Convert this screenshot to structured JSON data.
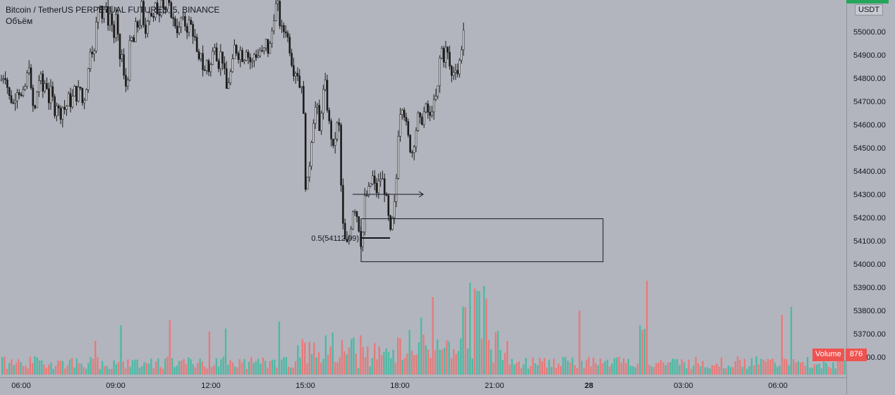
{
  "legend": {
    "symbol": "Bitcoin / TetherUS PERPETUAL FUTURES, 5, BINANCE",
    "volume_label": "Объём"
  },
  "price_scale": {
    "unit": "USDT",
    "ticks": [
      "55000.00",
      "54900.00",
      "54800.00",
      "54700.00",
      "54600.00",
      "54500.00",
      "54400.00",
      "54300.00",
      "54200.00",
      "54100.00",
      "54000.00",
      "53900.00",
      "53800.00",
      "53700.00",
      "53600.00"
    ]
  },
  "time_axis": {
    "ticks": [
      "06:00",
      "09:00",
      "12:00",
      "15:00",
      "18:00",
      "21:00",
      "28",
      "03:00",
      "06:00"
    ]
  },
  "volume_tag": {
    "label": "Volume",
    "value": "876"
  },
  "annotation": {
    "fib_label": "0.5(54112.09)"
  },
  "colors": {
    "background": "#b2b5be",
    "candle": "#1c1c1c",
    "vol_up": "#4fb8a4",
    "vol_down": "#e57b7b",
    "price_badge": "#26a65b",
    "volume_tag": "#ef5350"
  },
  "chart_data": {
    "type": "candlestick",
    "title": "Bitcoin / TetherUS PERPETUAL FUTURES, 5, BINANCE",
    "ylim": [
      53550,
      55150
    ],
    "x_ticks": [
      "06:00",
      "09:00",
      "12:00",
      "15:00",
      "18:00",
      "21:00",
      "28",
      "03:00",
      "06:00"
    ],
    "close_path": [
      [
        0,
        54790
      ],
      [
        6,
        54820
      ],
      [
        12,
        54720
      ],
      [
        18,
        54690
      ],
      [
        24,
        54760
      ],
      [
        30,
        54710
      ],
      [
        36,
        54780
      ],
      [
        40,
        54870
      ],
      [
        44,
        54700
      ],
      [
        48,
        54650
      ],
      [
        52,
        54760
      ],
      [
        56,
        54820
      ],
      [
        60,
        54740
      ],
      [
        64,
        54800
      ],
      [
        68,
        54700
      ],
      [
        72,
        54760
      ],
      [
        76,
        54650
      ],
      [
        80,
        54700
      ],
      [
        84,
        54630
      ],
      [
        88,
        54680
      ],
      [
        92,
        54660
      ],
      [
        96,
        54720
      ],
      [
        100,
        54680
      ],
      [
        104,
        54760
      ],
      [
        108,
        54710
      ],
      [
        112,
        54780
      ],
      [
        116,
        54690
      ],
      [
        120,
        54730
      ],
      [
        124,
        54830
      ],
      [
        128,
        54960
      ],
      [
        132,
        54880
      ],
      [
        136,
        55060
      ],
      [
        140,
        55150
      ],
      [
        144,
        55060
      ],
      [
        148,
        55120
      ],
      [
        152,
        55040
      ],
      [
        156,
        55090
      ],
      [
        160,
        54960
      ],
      [
        164,
        55080
      ],
      [
        168,
        54880
      ],
      [
        172,
        54900
      ],
      [
        176,
        54750
      ],
      [
        180,
        54800
      ],
      [
        184,
        54990
      ],
      [
        188,
        54940
      ],
      [
        192,
        55040
      ],
      [
        196,
        55010
      ],
      [
        200,
        55120
      ],
      [
        204,
        54960
      ],
      [
        208,
        55060
      ],
      [
        212,
        55100
      ],
      [
        216,
        55040
      ],
      [
        220,
        55120
      ],
      [
        224,
        55060
      ],
      [
        228,
        55160
      ],
      [
        232,
        55080
      ],
      [
        236,
        55130
      ],
      [
        240,
        55100
      ],
      [
        244,
        55050
      ],
      [
        248,
        55030
      ],
      [
        252,
        54990
      ],
      [
        256,
        55060
      ],
      [
        260,
        55040
      ],
      [
        264,
        55010
      ],
      [
        268,
        55050
      ],
      [
        272,
        55000
      ],
      [
        276,
        54960
      ],
      [
        280,
        54850
      ],
      [
        284,
        54920
      ],
      [
        288,
        54800
      ],
      [
        292,
        54880
      ],
      [
        296,
        54820
      ],
      [
        300,
        54900
      ],
      [
        304,
        54960
      ],
      [
        308,
        54840
      ],
      [
        312,
        54910
      ],
      [
        316,
        54860
      ],
      [
        320,
        54750
      ],
      [
        324,
        54800
      ],
      [
        328,
        54850
      ],
      [
        332,
        54950
      ],
      [
        336,
        54890
      ],
      [
        340,
        54920
      ],
      [
        344,
        54870
      ],
      [
        348,
        54930
      ],
      [
        352,
        54880
      ],
      [
        356,
        54860
      ],
      [
        360,
        54910
      ],
      [
        364,
        54890
      ],
      [
        368,
        54920
      ],
      [
        372,
        54900
      ],
      [
        376,
        54960
      ],
      [
        380,
        54900
      ],
      [
        384,
        54990
      ],
      [
        388,
        55080
      ],
      [
        392,
        55140
      ],
      [
        396,
        55030
      ],
      [
        400,
        55000
      ],
      [
        404,
        55010
      ],
      [
        408,
        54960
      ],
      [
        412,
        54880
      ],
      [
        416,
        54820
      ],
      [
        420,
        54840
      ],
      [
        424,
        54760
      ],
      [
        428,
        54790
      ],
      [
        432,
        54340
      ],
      [
        436,
        54360
      ],
      [
        440,
        54520
      ],
      [
        444,
        54640
      ],
      [
        448,
        54700
      ],
      [
        452,
        54560
      ],
      [
        456,
        54720
      ],
      [
        460,
        54780
      ],
      [
        464,
        54640
      ],
      [
        468,
        54560
      ],
      [
        472,
        54480
      ],
      [
        476,
        54600
      ],
      [
        480,
        54590
      ],
      [
        484,
        54200
      ],
      [
        488,
        54100
      ],
      [
        492,
        54080
      ],
      [
        496,
        54150
      ],
      [
        500,
        54250
      ],
      [
        504,
        54230
      ],
      [
        508,
        54150
      ],
      [
        512,
        54060
      ],
      [
        516,
        54280
      ],
      [
        520,
        54300
      ],
      [
        524,
        54340
      ],
      [
        528,
        54380
      ],
      [
        532,
        54300
      ],
      [
        536,
        54350
      ],
      [
        540,
        54380
      ],
      [
        544,
        54320
      ],
      [
        548,
        54260
      ],
      [
        552,
        54120
      ],
      [
        556,
        54200
      ],
      [
        560,
        54300
      ],
      [
        564,
        54580
      ],
      [
        568,
        54700
      ],
      [
        572,
        54650
      ],
      [
        576,
        54580
      ],
      [
        580,
        54500
      ],
      [
        584,
        54480
      ],
      [
        588,
        54560
      ],
      [
        592,
        54640
      ],
      [
        596,
        54600
      ],
      [
        600,
        54650
      ],
      [
        604,
        54680
      ],
      [
        608,
        54620
      ],
      [
        612,
        54680
      ],
      [
        616,
        54700
      ],
      [
        620,
        54760
      ],
      [
        624,
        54950
      ],
      [
        628,
        54880
      ],
      [
        632,
        54940
      ],
      [
        636,
        54860
      ],
      [
        640,
        54800
      ],
      [
        644,
        54860
      ],
      [
        648,
        54820
      ],
      [
        652,
        54900
      ],
      [
        656,
        55000
      ],
      [
        660,
        55150
      ]
    ],
    "annotations": {
      "fib_level": 54112.09,
      "box": {
        "x_start": 512,
        "x_end": 855,
        "top": 54195,
        "bottom": 54010
      },
      "arrow": {
        "x_start": 500,
        "x_end": 600,
        "price": 54300
      }
    }
  }
}
